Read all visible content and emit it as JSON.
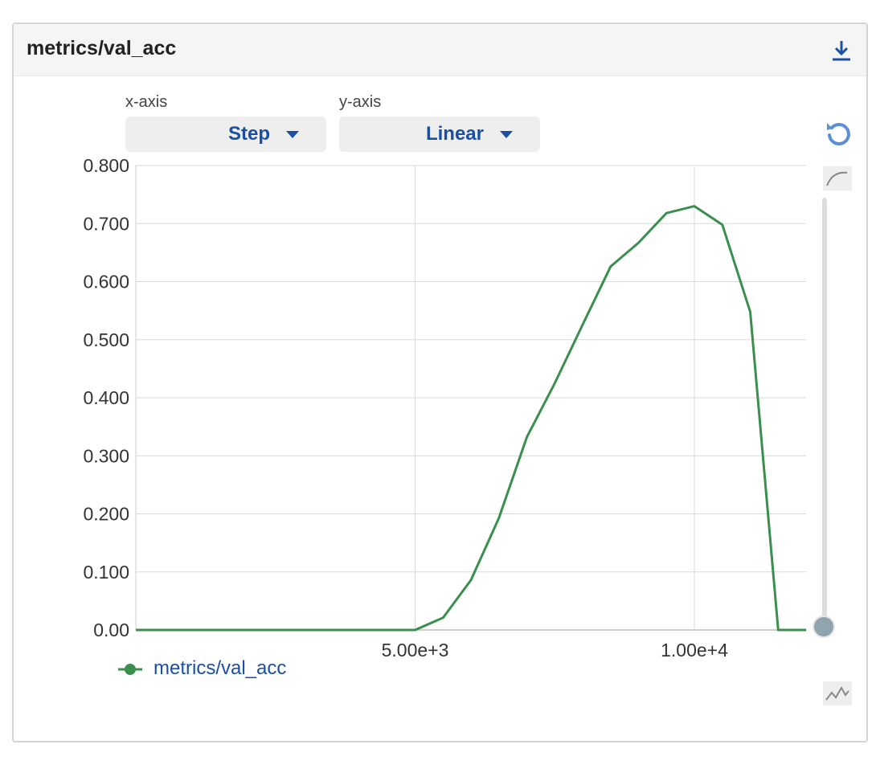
{
  "panel": {
    "title": "metrics/val_acc",
    "download_icon": "download-icon"
  },
  "controls": {
    "x_axis_label": "x-axis",
    "x_axis_value": "Step",
    "y_axis_label": "y-axis",
    "y_axis_value": "Linear"
  },
  "side_tools": {
    "reset_icon": "reset-zoom-icon",
    "smoothing_icon": "smoothing-curve-icon",
    "raw_icon": "raw-data-icon",
    "smoothing_level": 0
  },
  "colors": {
    "series": "#3a8f4e",
    "accent": "#1a4fa3",
    "grid": "#d9d9d9"
  },
  "legend": {
    "series_name": "metrics/val_acc"
  },
  "chart_data": {
    "type": "line",
    "title": "metrics/val_acc",
    "xlabel": "",
    "ylabel": "",
    "xlim": [
      0,
      12000
    ],
    "ylim": [
      0,
      0.8
    ],
    "x_ticks": [
      5000,
      10000
    ],
    "x_tick_labels": [
      "5.00e+3",
      "1.00e+4"
    ],
    "y_ticks": [
      0,
      0.1,
      0.2,
      0.3,
      0.4,
      0.5,
      0.6,
      0.7,
      0.8
    ],
    "y_tick_labels": [
      "0.00",
      "0.100",
      "0.200",
      "0.300",
      "0.400",
      "0.500",
      "0.600",
      "0.700",
      "0.800"
    ],
    "grid": true,
    "legend_position": "bottom-left",
    "series": [
      {
        "name": "metrics/val_acc",
        "x": [
          0,
          5000,
          5500,
          6000,
          6500,
          7000,
          7500,
          8000,
          8500,
          9000,
          9500,
          10000,
          10500,
          11000,
          11500,
          12000
        ],
        "y": [
          0,
          0,
          0.021,
          0.086,
          0.193,
          0.332,
          0.425,
          0.526,
          0.626,
          0.667,
          0.718,
          0.73,
          0.698,
          0.548,
          0,
          0
        ]
      }
    ]
  }
}
